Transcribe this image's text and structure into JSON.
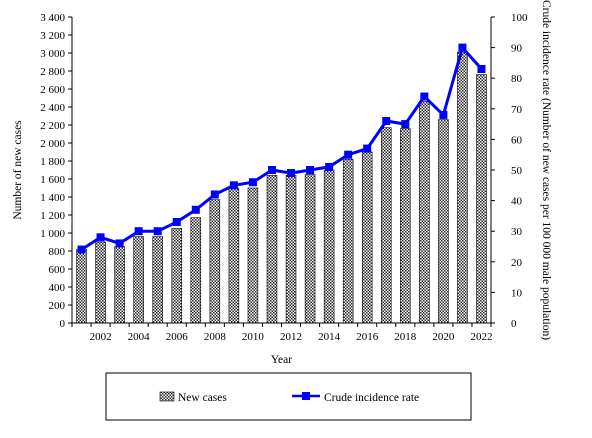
{
  "chart_data": {
    "type": "bar+line",
    "xlabel": "Year",
    "ylabel_left": "Number of new cases",
    "ylabel_right": "Crude incidence rate (Number of new cases per 100 000 male population)",
    "ylim_left": [
      0,
      3400
    ],
    "ylim_right": [
      0,
      100
    ],
    "yticks_left": [
      "0",
      "200",
      "400",
      "600",
      "800",
      "1 000",
      "1 200",
      "1 400",
      "1 600",
      "1 800",
      "2 000",
      "2 200",
      "2 400",
      "2 600",
      "2 800",
      "3 000",
      "3 200",
      "3 400"
    ],
    "yticks_right": [
      "0",
      "10",
      "20",
      "30",
      "40",
      "50",
      "60",
      "70",
      "80",
      "90",
      "100"
    ],
    "years": [
      2001,
      2002,
      2003,
      2004,
      2005,
      2006,
      2007,
      2008,
      2009,
      2010,
      2011,
      2012,
      2013,
      2014,
      2015,
      2016,
      2017,
      2018,
      2019,
      2020,
      2021,
      2022
    ],
    "xtick_labels": [
      "2002",
      "2004",
      "2006",
      "2008",
      "2010",
      "2012",
      "2014",
      "2016",
      "2018",
      "2020",
      "2022"
    ],
    "series": [
      {
        "name": "New cases",
        "kind": "bar",
        "axis": "left",
        "values": [
          820,
          900,
          850,
          960,
          960,
          1050,
          1170,
          1370,
          1500,
          1500,
          1640,
          1640,
          1650,
          1700,
          1820,
          1900,
          2170,
          2160,
          2460,
          2260,
          3010,
          2760
        ]
      },
      {
        "name": "Crude incidence rate",
        "kind": "line",
        "axis": "right",
        "color": "#0000ff",
        "values": [
          24,
          28,
          26,
          30,
          30,
          33,
          37,
          42,
          45,
          46,
          50,
          49,
          50,
          51,
          55,
          57,
          66,
          65,
          74,
          68,
          90,
          83
        ]
      }
    ],
    "legend_position": "bottom"
  }
}
